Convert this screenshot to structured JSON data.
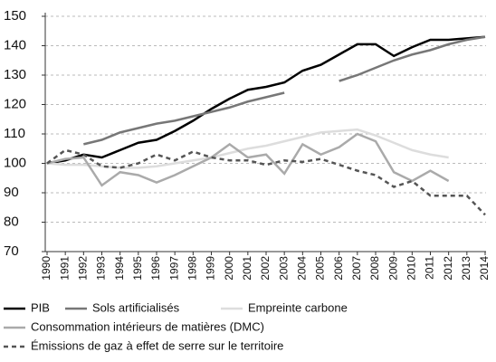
{
  "chart_data": {
    "type": "line",
    "categories": [
      "1990",
      "1991",
      "1992",
      "1993",
      "1994",
      "1995",
      "1996",
      "1997",
      "1998",
      "1999",
      "2000",
      "2001",
      "2002",
      "2003",
      "2004",
      "2005",
      "2006",
      "2007",
      "2008",
      "2009",
      "2010",
      "2011",
      "2012",
      "2013",
      "2014"
    ],
    "ylim": [
      70,
      150
    ],
    "yticks": [
      70,
      80,
      90,
      100,
      110,
      120,
      130,
      140,
      150
    ],
    "grid": true,
    "series": [
      {
        "name": "PIB",
        "color": "#000000",
        "line_style": "solid",
        "values": [
          100,
          101,
          103,
          102,
          104.5,
          107,
          108,
          111,
          114.5,
          118.5,
          122,
          125,
          126,
          127.5,
          131.5,
          133.5,
          137,
          140.5,
          140.5,
          136.5,
          139.5,
          142,
          142,
          142.5,
          143
        ]
      },
      {
        "name": "Sols artificialisés",
        "color": "#777777",
        "line_style": "solid",
        "values": [
          null,
          null,
          106.5,
          108,
          110.5,
          112,
          113.5,
          114.5,
          116,
          117.5,
          119,
          121,
          122.5,
          124,
          null,
          null,
          128,
          130,
          132.5,
          135,
          137,
          138.5,
          140.5,
          142,
          143
        ]
      },
      {
        "name": "Empreinte carbone",
        "color": "#dddddd",
        "line_style": "solid",
        "values": [
          100,
          99.5,
          99.5,
          99,
          98.5,
          98.5,
          99,
          100,
          101,
          102,
          103.5,
          105,
          106,
          107.5,
          109,
          110.5,
          111,
          111.5,
          109.5,
          107,
          104.5,
          103,
          102,
          null,
          null
        ]
      },
      {
        "name": "Consommation intérieurs de matières (DMC)",
        "color": "#aaaaaa",
        "line_style": "solid",
        "values": [
          100,
          101.5,
          102,
          92.5,
          97,
          96,
          93.5,
          96,
          99,
          102,
          106.5,
          102,
          103,
          96.5,
          106.5,
          103,
          105.5,
          110,
          107.5,
          97,
          94,
          97.5,
          94,
          null,
          null
        ]
      },
      {
        "name": "Émissions de gaz à effet de serre sur le territoire",
        "color": "#555555",
        "line_style": "dashed",
        "values": [
          100,
          104.5,
          103,
          99,
          98.5,
          100,
          103,
          101,
          104,
          102,
          101,
          101,
          99.5,
          101,
          100.5,
          101.5,
          99.5,
          97.5,
          96,
          92,
          94,
          89,
          89,
          89,
          82.5
        ]
      }
    ]
  }
}
